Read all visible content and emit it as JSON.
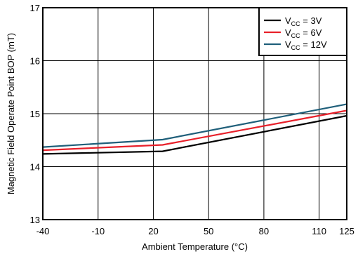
{
  "chart_data": {
    "type": "line",
    "title": "",
    "xlabel": "Ambient Temperature (°C)",
    "ylabel": "Magnetic Field Operate Point BOP (mT)",
    "xlim": [
      -40,
      125
    ],
    "ylim": [
      13,
      17
    ],
    "xticks": [
      -40,
      -10,
      20,
      50,
      80,
      110,
      125
    ],
    "yticks": [
      13,
      14,
      15,
      16,
      17
    ],
    "grid": true,
    "legend_position": "top-right",
    "series": [
      {
        "name_main": "V",
        "name_sub": "CC",
        "name_rest": " = 3V",
        "color": "#000000",
        "x": [
          -40,
          25,
          125
        ],
        "y": [
          14.24,
          14.29,
          14.96
        ]
      },
      {
        "name_main": "V",
        "name_sub": "CC",
        "name_rest": " = 6V",
        "color": "#e8202a",
        "x": [
          -40,
          25,
          125
        ],
        "y": [
          14.31,
          14.41,
          15.06
        ]
      },
      {
        "name_main": "V",
        "name_sub": "CC",
        "name_rest": " = 12V",
        "color": "#1f5f7a",
        "x": [
          -40,
          25,
          125
        ],
        "y": [
          14.37,
          14.51,
          15.18
        ]
      }
    ]
  }
}
